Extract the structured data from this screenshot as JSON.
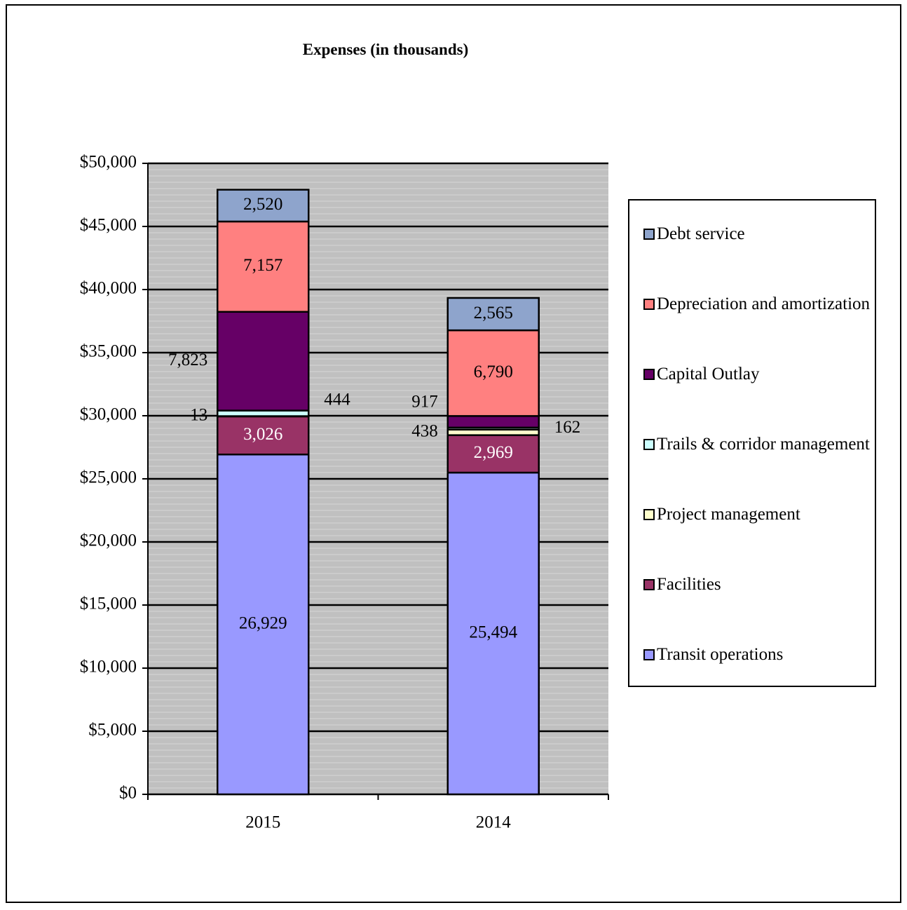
{
  "chart_data": {
    "type": "bar",
    "stacked": true,
    "title": "Expenses (in thousands)",
    "categories": [
      "2015",
      "2014"
    ],
    "ylim": [
      0,
      50000
    ],
    "yticks": [
      0,
      5000,
      10000,
      15000,
      20000,
      25000,
      30000,
      35000,
      40000,
      45000,
      50000
    ],
    "ytick_labels": [
      "$0",
      "$5,000",
      "$10,000",
      "$15,000",
      "$20,000",
      "$25,000",
      "$30,000",
      "$35,000",
      "$40,000",
      "$45,000",
      "$50,000"
    ],
    "grid": true,
    "legend_position": "right",
    "series": [
      {
        "name": "Transit operations",
        "color": "#9999FF",
        "values": [
          26929,
          25494
        ],
        "labels": [
          "26,929",
          "25,494"
        ]
      },
      {
        "name": "Facilities",
        "color": "#993366",
        "values": [
          3026,
          2969
        ],
        "labels": [
          "3,026",
          "2,969"
        ]
      },
      {
        "name": "Project management",
        "color": "#FFFFCC",
        "values": [
          13,
          438
        ],
        "labels": [
          "13",
          "438"
        ]
      },
      {
        "name": "Trails & corridor management",
        "color": "#CCFFFF",
        "values": [
          444,
          162
        ],
        "labels": [
          "444",
          "162"
        ]
      },
      {
        "name": "Capital Outlay",
        "color": "#660066",
        "values": [
          7823,
          917
        ],
        "labels": [
          "7,823",
          "917"
        ]
      },
      {
        "name": "Depreciation and amortization",
        "color": "#FF8080",
        "values": [
          7157,
          6790
        ],
        "labels": [
          "7,157",
          "6,790"
        ]
      },
      {
        "name": "Debt service",
        "color": "#8EA4CC",
        "values": [
          2520,
          2565
        ],
        "labels": [
          "2,520",
          "2,565"
        ]
      }
    ]
  }
}
